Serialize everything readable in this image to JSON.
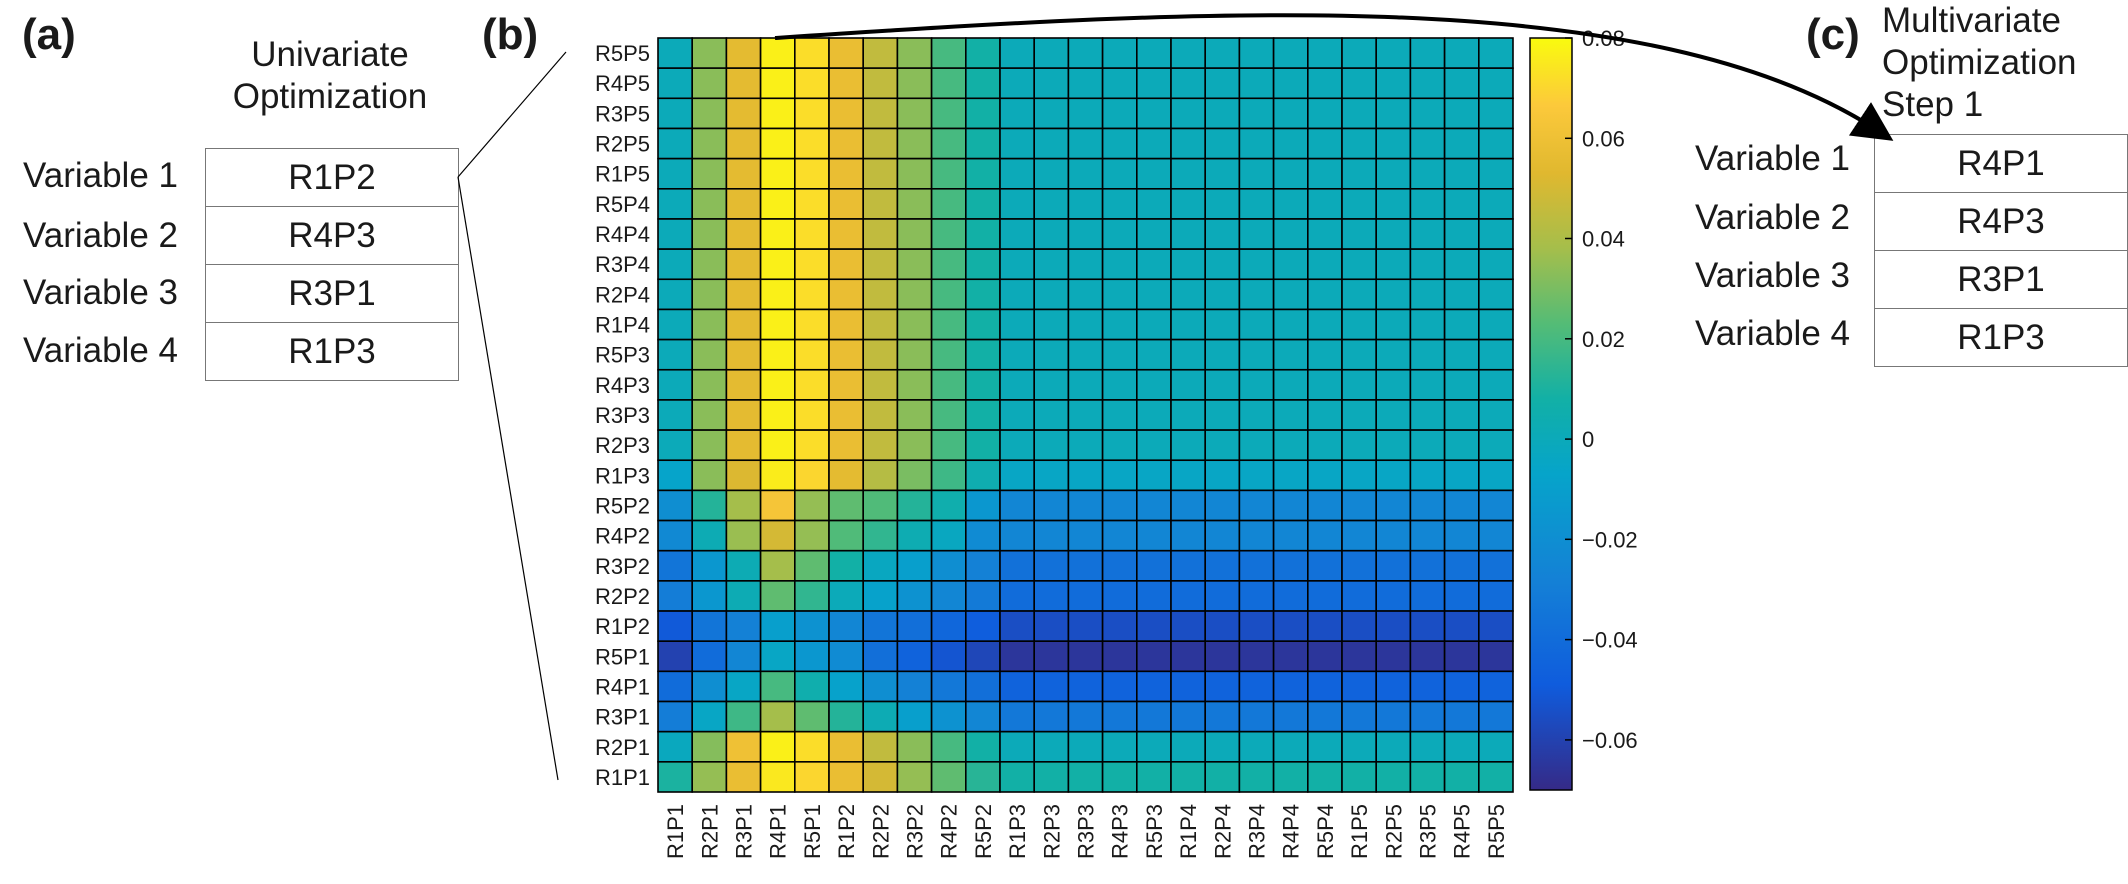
{
  "panels": {
    "a": {
      "label": "(a)",
      "heading": [
        "Univariate",
        "Optimization"
      ],
      "rows": [
        {
          "variable": "Variable 1",
          "value": "R1P2"
        },
        {
          "variable": "Variable 2",
          "value": "R4P3"
        },
        {
          "variable": "Variable 3",
          "value": "R3P1"
        },
        {
          "variable": "Variable 4",
          "value": "R1P3"
        }
      ]
    },
    "b": {
      "label": "(b)"
    },
    "c": {
      "label": "(c)",
      "heading": [
        "Multivariate",
        "Optimization",
        "Step 1"
      ],
      "rows": [
        {
          "variable": "Variable 1",
          "value": "R4P1"
        },
        {
          "variable": "Variable 2",
          "value": "R4P3"
        },
        {
          "variable": "Variable 3",
          "value": "R3P1"
        },
        {
          "variable": "Variable 4",
          "value": "R1P3"
        }
      ]
    }
  },
  "chart_data": {
    "type": "heatmap",
    "title": "",
    "xlabel": "",
    "ylabel": "",
    "x": [
      "R1P1",
      "R2P1",
      "R3P1",
      "R4P1",
      "R5P1",
      "R1P2",
      "R2P2",
      "R3P2",
      "R4P2",
      "R5P2",
      "R1P3",
      "R2P3",
      "R3P3",
      "R4P3",
      "R5P3",
      "R1P4",
      "R2P4",
      "R3P4",
      "R4P4",
      "R5P4",
      "R1P5",
      "R2P5",
      "R3P5",
      "R4P5",
      "R5P5"
    ],
    "y": [
      "R5P5",
      "R4P5",
      "R3P5",
      "R2P5",
      "R1P5",
      "R5P4",
      "R4P4",
      "R3P4",
      "R2P4",
      "R1P4",
      "R5P3",
      "R4P3",
      "R3P3",
      "R2P3",
      "R1P3",
      "R5P2",
      "R4P2",
      "R3P2",
      "R2P2",
      "R1P2",
      "R5P1",
      "R4P1",
      "R3P1",
      "R2P1",
      "R1P1"
    ],
    "row_profiles": {
      "R5P5": [
        0,
        0.033,
        0.055,
        0.077,
        0.072,
        0.058,
        0.045,
        0.033,
        0.02,
        0.008,
        0,
        0,
        0,
        0,
        0,
        0,
        0,
        0,
        0,
        0,
        0,
        0,
        0,
        0,
        0
      ],
      "R2P3": [
        0,
        0.033,
        0.055,
        0.077,
        0.072,
        0.058,
        0.045,
        0.033,
        0.02,
        0.008,
        0,
        0,
        0,
        0,
        0,
        0,
        0,
        0,
        0,
        0,
        0,
        0,
        0,
        0,
        0
      ],
      "R1P3": [
        -0.007,
        0.033,
        0.052,
        0.076,
        0.07,
        0.055,
        0.042,
        0.03,
        0.018,
        0.004,
        -0.005,
        -0.005,
        -0.005,
        -0.005,
        -0.005,
        -0.005,
        -0.005,
        -0.005,
        -0.005,
        -0.005,
        -0.005,
        -0.005,
        -0.005,
        -0.005,
        -0.005
      ],
      "R5P2": [
        -0.02,
        0.012,
        0.038,
        0.063,
        0.035,
        0.025,
        0.022,
        0.012,
        0.005,
        -0.015,
        -0.025,
        -0.025,
        -0.025,
        -0.025,
        -0.025,
        -0.025,
        -0.025,
        -0.025,
        -0.025,
        -0.025,
        -0.025,
        -0.025,
        -0.025,
        -0.025,
        -0.025
      ],
      "R4P2": [
        -0.023,
        0.002,
        0.036,
        0.05,
        0.035,
        0.022,
        0.015,
        0.003,
        -0.003,
        -0.022,
        -0.025,
        -0.025,
        -0.025,
        -0.025,
        -0.025,
        -0.025,
        -0.025,
        -0.025,
        -0.025,
        -0.025,
        -0.025,
        -0.025,
        -0.025,
        -0.025,
        -0.025
      ],
      "R3P2": [
        -0.035,
        -0.015,
        0.002,
        0.038,
        0.025,
        0.008,
        -0.003,
        -0.01,
        -0.02,
        -0.028,
        -0.037,
        -0.037,
        -0.037,
        -0.037,
        -0.037,
        -0.037,
        -0.037,
        -0.037,
        -0.037,
        -0.037,
        -0.037,
        -0.037,
        -0.037,
        -0.037,
        -0.037
      ],
      "R2P2": [
        -0.03,
        -0.015,
        0.002,
        0.025,
        0.015,
        0.0,
        -0.008,
        -0.018,
        -0.025,
        -0.032,
        -0.04,
        -0.04,
        -0.04,
        -0.04,
        -0.04,
        -0.04,
        -0.04,
        -0.04,
        -0.04,
        -0.04,
        -0.04,
        -0.04,
        -0.04,
        -0.04,
        -0.04
      ],
      "R1P2": [
        -0.05,
        -0.035,
        -0.028,
        -0.01,
        -0.018,
        -0.025,
        -0.035,
        -0.038,
        -0.043,
        -0.048,
        -0.055,
        -0.055,
        -0.055,
        -0.055,
        -0.055,
        -0.055,
        -0.055,
        -0.055,
        -0.055,
        -0.055,
        -0.055,
        -0.055,
        -0.055,
        -0.055,
        -0.055
      ],
      "R5P1": [
        -0.06,
        -0.04,
        -0.025,
        -0.005,
        -0.015,
        -0.022,
        -0.038,
        -0.045,
        -0.052,
        -0.058,
        -0.065,
        -0.065,
        -0.065,
        -0.065,
        -0.065,
        -0.065,
        -0.065,
        -0.065,
        -0.065,
        -0.065,
        -0.065,
        -0.065,
        -0.065,
        -0.065,
        -0.065
      ],
      "R4P1": [
        -0.04,
        -0.02,
        -0.005,
        0.02,
        0.005,
        -0.008,
        -0.02,
        -0.028,
        -0.033,
        -0.038,
        -0.045,
        -0.045,
        -0.045,
        -0.045,
        -0.045,
        -0.045,
        -0.045,
        -0.045,
        -0.045,
        -0.045,
        -0.045,
        -0.045,
        -0.045,
        -0.045,
        -0.045
      ],
      "R3P1": [
        -0.03,
        -0.005,
        0.018,
        0.038,
        0.025,
        0.012,
        0.002,
        -0.01,
        -0.018,
        -0.025,
        -0.033,
        -0.033,
        -0.033,
        -0.033,
        -0.033,
        -0.033,
        -0.033,
        -0.033,
        -0.033,
        -0.033,
        -0.033,
        -0.033,
        -0.033,
        -0.033,
        -0.033
      ],
      "R2P1": [
        -0.002,
        0.032,
        0.06,
        0.077,
        0.072,
        0.058,
        0.045,
        0.033,
        0.02,
        0.008,
        0,
        0,
        0,
        0,
        0,
        0,
        0,
        0,
        0,
        0,
        0,
        0,
        0,
        0,
        0
      ],
      "R1P1": [
        0.01,
        0.035,
        0.058,
        0.075,
        0.07,
        0.058,
        0.05,
        0.035,
        0.025,
        0.013,
        0.008,
        0.008,
        0.008,
        0.008,
        0.008,
        0.008,
        0.008,
        0.008,
        0.008,
        0.008,
        0.008,
        0.008,
        0.008,
        0.008,
        0.008
      ]
    },
    "row_profile_map": {
      "R5P5": "R5P5",
      "R4P5": "R5P5",
      "R3P5": "R5P5",
      "R2P5": "R5P5",
      "R1P5": "R5P5",
      "R5P4": "R5P5",
      "R4P4": "R5P5",
      "R3P4": "R5P5",
      "R2P4": "R5P5",
      "R1P4": "R5P5",
      "R5P3": "R5P5",
      "R4P3": "R5P5",
      "R3P3": "R5P5",
      "R2P3": "R2P3",
      "R1P3": "R1P3",
      "R5P2": "R5P2",
      "R4P2": "R4P2",
      "R3P2": "R3P2",
      "R2P2": "R2P2",
      "R1P2": "R1P2",
      "R5P1": "R5P1",
      "R4P1": "R4P1",
      "R3P1": "R3P1",
      "R2P1": "R2P1",
      "R1P1": "R1P1"
    },
    "colorbar": {
      "range": [
        -0.07,
        0.08
      ],
      "ticks": [
        0.08,
        0.06,
        0.04,
        0.02,
        0,
        -0.02,
        -0.04,
        -0.06
      ],
      "tick_labels": [
        "0.08",
        "0.06",
        "0.04",
        "0.02",
        "0",
        "−0.02",
        "−0.04",
        "−0.06"
      ],
      "colormap": "parula"
    },
    "grid": true
  }
}
